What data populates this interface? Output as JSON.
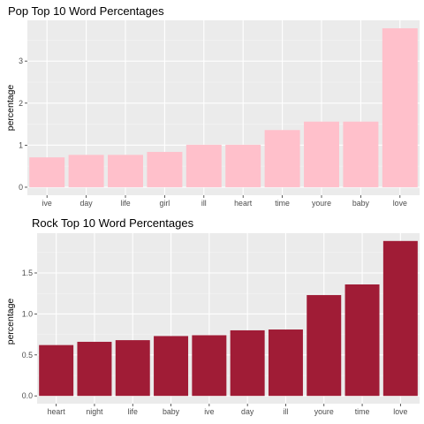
{
  "chart_data": [
    {
      "type": "bar",
      "title": "Pop Top 10 Word Percentages",
      "xlabel": "",
      "ylabel": "percentage",
      "categories": [
        "ive",
        "day",
        "life",
        "girl",
        "ill",
        "heart",
        "time",
        "youre",
        "baby",
        "love"
      ],
      "values": [
        0.71,
        0.77,
        0.77,
        0.84,
        1.01,
        1.01,
        1.36,
        1.56,
        1.56,
        3.78
      ],
      "ylim": [
        -0.19,
        3.97
      ],
      "yticks": [
        0,
        1,
        2,
        3
      ],
      "ytick_labels": [
        "0",
        "1",
        "2",
        "3"
      ],
      "color": "#ffc0cb",
      "grid": true
    },
    {
      "type": "bar",
      "title": "Rock Top 10 Word Percentages",
      "xlabel": "",
      "ylabel": "percentage",
      "categories": [
        "heart",
        "night",
        "life",
        "baby",
        "ive",
        "day",
        "ill",
        "youre",
        "time",
        "love"
      ],
      "values": [
        0.62,
        0.66,
        0.68,
        0.73,
        0.74,
        0.8,
        0.81,
        1.23,
        1.36,
        1.89
      ],
      "ylim": [
        -0.095,
        1.985
      ],
      "yticks": [
        0,
        0.5,
        1,
        1.5
      ],
      "ytick_labels": [
        "0.0",
        "0.5",
        "1.0",
        "1.5"
      ],
      "color": "#a01c36",
      "grid": true
    }
  ]
}
